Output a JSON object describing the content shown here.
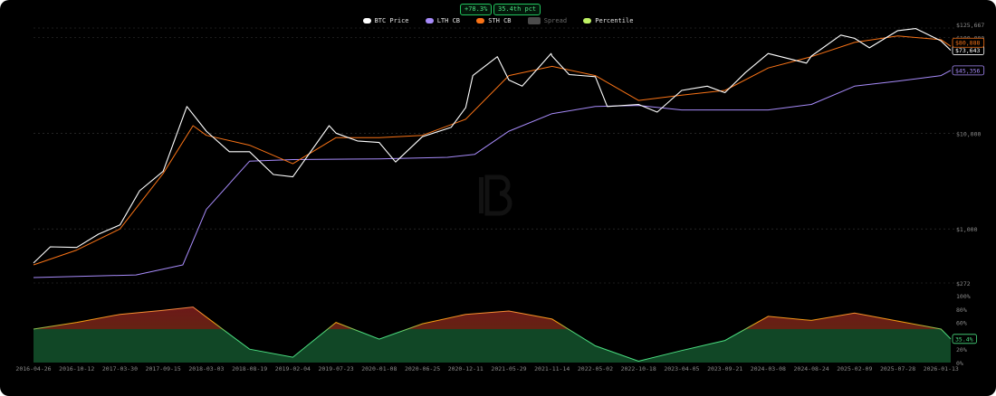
{
  "header": {
    "badge_change": "+78.3%",
    "badge_pct": "35.4th pct"
  },
  "legend": [
    {
      "label": "BTC Price",
      "color": "#ffffff",
      "style": "dot"
    },
    {
      "label": "LTH CB",
      "color": "#a78bfa",
      "style": "dot"
    },
    {
      "label": "STH CB",
      "color": "#f97316",
      "style": "dot"
    },
    {
      "label": "Spread",
      "color": "#4b4b4b",
      "style": "square",
      "disabled": true
    },
    {
      "label": "Percentile",
      "color": "#bef264",
      "style": "dot"
    }
  ],
  "colors": {
    "background": "#000000",
    "price": "#ffffff",
    "lth": "#a78bfa",
    "sth": "#f97316",
    "pct_low": "#4ade80",
    "pct_mid": "#f59e0b",
    "pct_high": "#f87171",
    "grid": "#3a3a3a"
  },
  "chart_data": [
    {
      "type": "line",
      "scale": "log",
      "y_tick_labels": [
        "$125,667",
        "$100,000",
        "$10,000",
        "$1,000",
        "$272"
      ],
      "y_tick_values": [
        125667,
        100000,
        10000,
        1000,
        272
      ],
      "ylim": [
        272,
        125667
      ],
      "grid": true,
      "end_labels": {
        "price": "$73,643",
        "sth": "$80,888",
        "lth": "$45,356"
      },
      "series": [
        {
          "name": "BTC Price",
          "x": [
            "2016-04-26",
            "2016-07-01",
            "2016-10-12",
            "2017-01-05",
            "2017-03-30",
            "2017-06-15",
            "2017-09-15",
            "2017-12-17",
            "2018-03-03",
            "2018-06-01",
            "2018-08-19",
            "2018-11-20",
            "2019-02-04",
            "2019-06-26",
            "2019-07-23",
            "2019-10-15",
            "2020-01-08",
            "2020-03-12",
            "2020-06-25",
            "2020-10-15",
            "2020-12-11",
            "2021-01-08",
            "2021-04-14",
            "2021-05-29",
            "2021-07-20",
            "2021-11-10",
            "2021-11-14",
            "2022-01-20",
            "2022-05-02",
            "2022-06-18",
            "2022-10-18",
            "2022-12-30",
            "2023-04-05",
            "2023-07-14",
            "2023-09-21",
            "2023-12-10",
            "2024-03-08",
            "2024-08-05",
            "2024-08-24",
            "2024-12-17",
            "2025-02-09",
            "2025-04-08",
            "2025-07-28",
            "2025-10-06",
            "2026-01-13",
            "2026-02-20"
          ],
          "y": [
            440,
            650,
            640,
            880,
            1100,
            2500,
            4000,
            19000,
            10500,
            6400,
            6400,
            3700,
            3500,
            12000,
            10000,
            8300,
            8000,
            5000,
            9200,
            11500,
            18500,
            40000,
            63000,
            36000,
            31000,
            68000,
            64000,
            41000,
            39000,
            19000,
            20000,
            16600,
            28000,
            31000,
            26500,
            43000,
            68000,
            54000,
            64000,
            106000,
            98000,
            78000,
            118000,
            124000,
            92000,
            73643
          ]
        },
        {
          "name": "LTH CB",
          "x": [
            "2016-04-26",
            "2017-06-01",
            "2017-12-01",
            "2018-03-03",
            "2018-08-19",
            "2019-02-04",
            "2020-01-08",
            "2020-10-01",
            "2021-01-15",
            "2021-05-29",
            "2021-11-14",
            "2022-05-02",
            "2022-10-18",
            "2023-04-05",
            "2024-03-08",
            "2024-08-24",
            "2025-02-09",
            "2025-07-28",
            "2026-01-13",
            "2026-02-20"
          ],
          "y": [
            310,
            330,
            420,
            1600,
            5100,
            5300,
            5400,
            5600,
            6000,
            10500,
            16000,
            19000,
            19500,
            17500,
            17500,
            20000,
            31000,
            35000,
            40000,
            45356
          ]
        },
        {
          "name": "STH CB",
          "x": [
            "2016-04-26",
            "2016-10-12",
            "2017-03-30",
            "2017-09-15",
            "2018-01-10",
            "2018-03-03",
            "2018-08-19",
            "2019-02-04",
            "2019-07-23",
            "2020-01-08",
            "2020-06-25",
            "2020-12-11",
            "2021-05-29",
            "2021-11-14",
            "2022-05-02",
            "2022-10-18",
            "2023-04-05",
            "2023-09-21",
            "2024-03-08",
            "2024-08-24",
            "2025-02-09",
            "2025-07-28",
            "2026-01-13",
            "2026-02-20"
          ],
          "y": [
            420,
            600,
            1000,
            3800,
            12000,
            9500,
            7500,
            4800,
            9000,
            9000,
            9500,
            14000,
            40000,
            50000,
            40000,
            22000,
            25000,
            28000,
            48000,
            63000,
            89000,
            104000,
            95000,
            80888
          ]
        }
      ]
    },
    {
      "type": "area",
      "series": [
        {
          "name": "Percentile",
          "x": [
            "2016-04-26",
            "2016-10-12",
            "2017-03-30",
            "2017-09-15",
            "2018-01-10",
            "2018-03-03",
            "2018-08-19",
            "2019-02-04",
            "2019-07-23",
            "2020-01-08",
            "2020-06-25",
            "2020-12-11",
            "2021-05-29",
            "2021-11-14",
            "2022-05-02",
            "2022-10-18",
            "2023-04-05",
            "2023-09-21",
            "2024-03-08",
            "2024-08-24",
            "2025-02-09",
            "2025-07-28",
            "2026-01-13",
            "2026-02-20"
          ],
          "y": [
            50,
            60,
            72,
            78,
            83,
            68,
            20,
            8,
            60,
            35,
            58,
            72,
            77,
            65,
            25,
            2,
            18,
            33,
            69,
            63,
            74,
            62,
            50,
            35.4
          ]
        }
      ],
      "y_tick_labels": [
        "100%",
        "80%",
        "60%",
        "40%",
        "20%",
        "0%"
      ],
      "ylim": [
        0,
        100
      ],
      "end_label": "35.4%",
      "threshold": 50
    }
  ],
  "x_axis_labels": [
    "2016-04-26",
    "2016-10-12",
    "2017-03-30",
    "2017-09-15",
    "2018-03-03",
    "2018-08-19",
    "2019-02-04",
    "2019-07-23",
    "2020-01-08",
    "2020-06-25",
    "2020-12-11",
    "2021-05-29",
    "2021-11-14",
    "2022-05-02",
    "2022-10-18",
    "2023-04-05",
    "2023-09-21",
    "2024-03-08",
    "2024-08-24",
    "2025-02-09",
    "2025-07-28",
    "2026-01-13"
  ]
}
